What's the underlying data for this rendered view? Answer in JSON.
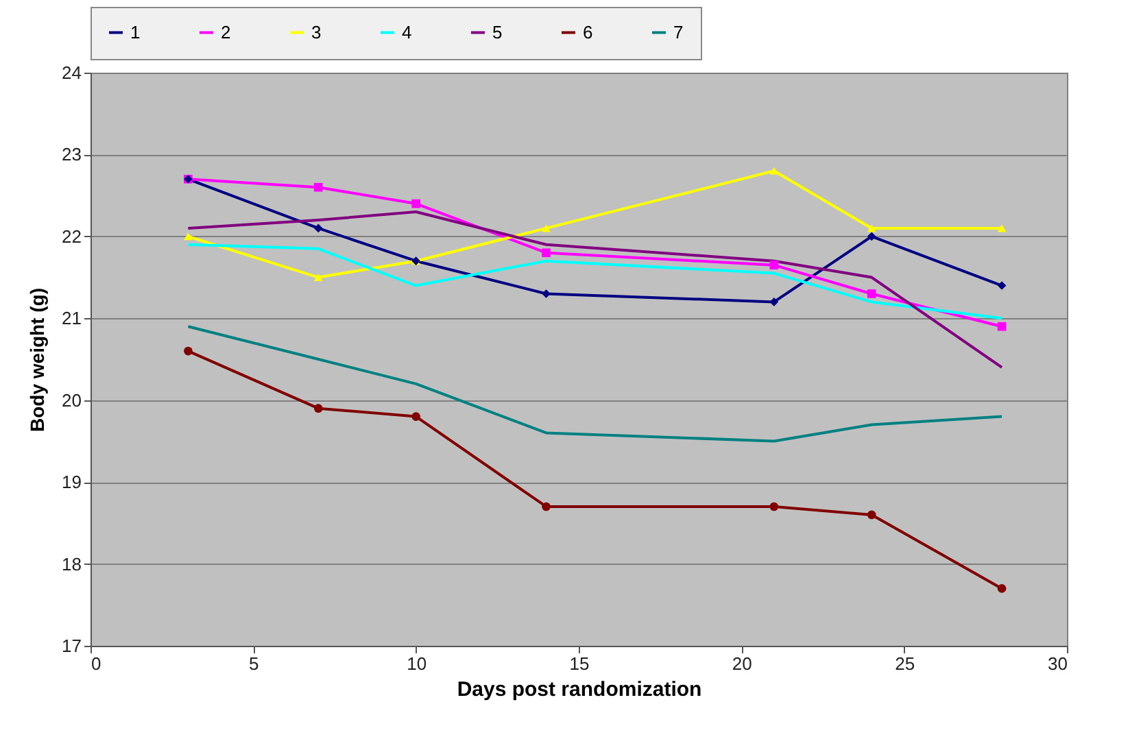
{
  "chart_data": {
    "type": "line",
    "xlabel": "Days post randomization",
    "ylabel": "Body weight (g)",
    "x": [
      3,
      7,
      10,
      14,
      21,
      24,
      28
    ],
    "xlim": [
      0,
      30
    ],
    "xticks": [
      0,
      5,
      10,
      15,
      20,
      25,
      30
    ],
    "ylim": [
      17,
      24
    ],
    "yticks": [
      17,
      18,
      19,
      20,
      21,
      22,
      23,
      24
    ],
    "grid": "y",
    "legend": "top",
    "series": [
      {
        "name": "1",
        "color": "#000080",
        "marker": "diamond",
        "values": [
          22.7,
          22.1,
          21.7,
          21.3,
          21.2,
          22.0,
          21.4
        ]
      },
      {
        "name": "2",
        "color": "#ff00ff",
        "marker": "square",
        "values": [
          22.7,
          22.6,
          22.4,
          21.8,
          21.65,
          21.3,
          20.9
        ]
      },
      {
        "name": "3",
        "color": "#ffff00",
        "marker": "triangle",
        "values": [
          22.0,
          21.5,
          21.7,
          22.1,
          22.8,
          22.1,
          22.1
        ]
      },
      {
        "name": "4",
        "color": "#00ffff",
        "marker": "none",
        "values": [
          21.9,
          21.85,
          21.4,
          21.7,
          21.55,
          21.2,
          21.0
        ]
      },
      {
        "name": "5",
        "color": "#800080",
        "marker": "none",
        "values": [
          22.1,
          22.2,
          22.3,
          21.9,
          21.7,
          21.5,
          20.4
        ]
      },
      {
        "name": "6",
        "color": "#800000",
        "marker": "circle",
        "values": [
          20.6,
          19.9,
          19.8,
          18.7,
          18.7,
          18.6,
          17.7
        ]
      },
      {
        "name": "7",
        "color": "#008080",
        "marker": "none",
        "values": [
          20.9,
          20.5,
          20.2,
          19.6,
          19.5,
          19.7,
          19.8
        ]
      }
    ]
  }
}
